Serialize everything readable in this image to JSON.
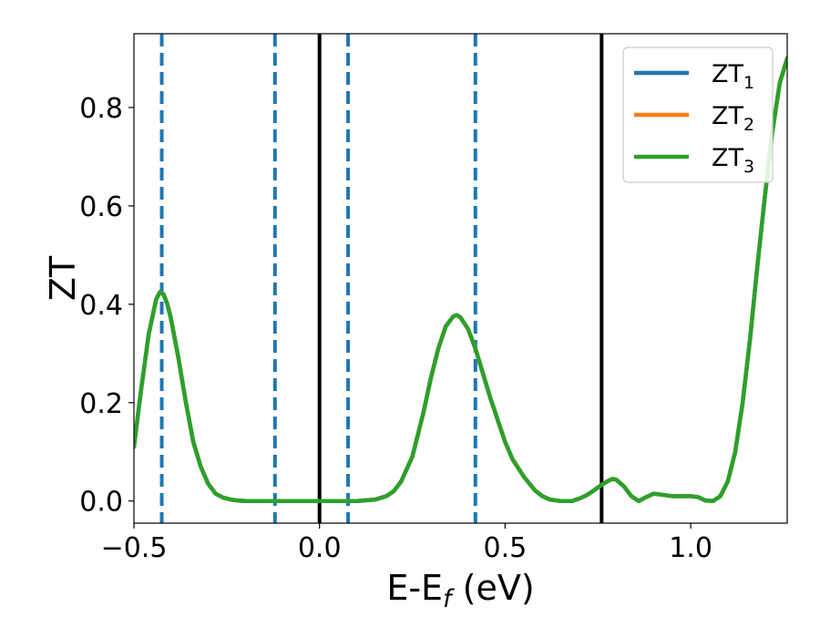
{
  "chart_data": {
    "type": "line",
    "xlabel": "E-E",
    "xlabel_sub": "f",
    "xlabel_unit": " (eV)",
    "ylabel": "ZT",
    "xlim": [
      -0.5,
      1.26
    ],
    "ylim": [
      -0.045,
      0.95
    ],
    "xticks": [
      {
        "value": -0.5,
        "label": "−0.5"
      },
      {
        "value": 0.0,
        "label": "0.0"
      },
      {
        "value": 0.5,
        "label": "0.5"
      },
      {
        "value": 1.0,
        "label": "1.0"
      }
    ],
    "yticks": [
      {
        "value": 0.0,
        "label": "0.0"
      },
      {
        "value": 0.2,
        "label": "0.2"
      },
      {
        "value": 0.4,
        "label": "0.4"
      },
      {
        "value": 0.6,
        "label": "0.6"
      },
      {
        "value": 0.8,
        "label": "0.8"
      }
    ],
    "grid": false,
    "legend_position": "top-right",
    "series": [
      {
        "name": "ZT",
        "sub": "1",
        "color": "#1f77b4"
      },
      {
        "name": "ZT",
        "sub": "2",
        "color": "#ff7f0e"
      },
      {
        "name": "ZT",
        "sub": "3",
        "color": "#2ca02c",
        "x": [
          -0.5,
          -0.48,
          -0.46,
          -0.44,
          -0.43,
          -0.42,
          -0.41,
          -0.4,
          -0.38,
          -0.36,
          -0.34,
          -0.32,
          -0.3,
          -0.28,
          -0.26,
          -0.24,
          -0.22,
          -0.2,
          -0.15,
          -0.1,
          -0.05,
          0.0,
          0.05,
          0.1,
          0.12,
          0.15,
          0.18,
          0.2,
          0.22,
          0.25,
          0.28,
          0.3,
          0.32,
          0.34,
          0.36,
          0.37,
          0.38,
          0.4,
          0.42,
          0.44,
          0.46,
          0.48,
          0.5,
          0.52,
          0.55,
          0.58,
          0.6,
          0.62,
          0.65,
          0.68,
          0.7,
          0.72,
          0.74,
          0.76,
          0.78,
          0.79,
          0.8,
          0.82,
          0.84,
          0.86,
          0.88,
          0.9,
          0.92,
          0.95,
          1.0,
          1.02,
          1.04,
          1.06,
          1.08,
          1.1,
          1.12,
          1.14,
          1.16,
          1.18,
          1.2,
          1.22,
          1.24,
          1.26
        ],
        "y": [
          0.11,
          0.23,
          0.34,
          0.41,
          0.425,
          0.42,
          0.4,
          0.37,
          0.29,
          0.2,
          0.12,
          0.07,
          0.035,
          0.015,
          0.007,
          0.003,
          0.001,
          0.0,
          0.0,
          0.0,
          0.0,
          0.0,
          0.0,
          0.0,
          0.001,
          0.003,
          0.01,
          0.02,
          0.04,
          0.09,
          0.18,
          0.25,
          0.31,
          0.355,
          0.375,
          0.378,
          0.373,
          0.35,
          0.31,
          0.26,
          0.21,
          0.165,
          0.12,
          0.085,
          0.05,
          0.022,
          0.01,
          0.003,
          0.0,
          0.0,
          0.005,
          0.012,
          0.022,
          0.033,
          0.042,
          0.045,
          0.043,
          0.03,
          0.01,
          0.0,
          0.008,
          0.015,
          0.013,
          0.01,
          0.01,
          0.008,
          0.001,
          0.0,
          0.01,
          0.04,
          0.1,
          0.2,
          0.33,
          0.48,
          0.62,
          0.75,
          0.85,
          0.9
        ]
      }
    ],
    "vlines_solid": [
      0.0,
      0.76
    ],
    "vlines_dashed": [
      -0.425,
      -0.12,
      0.077,
      0.42
    ]
  }
}
